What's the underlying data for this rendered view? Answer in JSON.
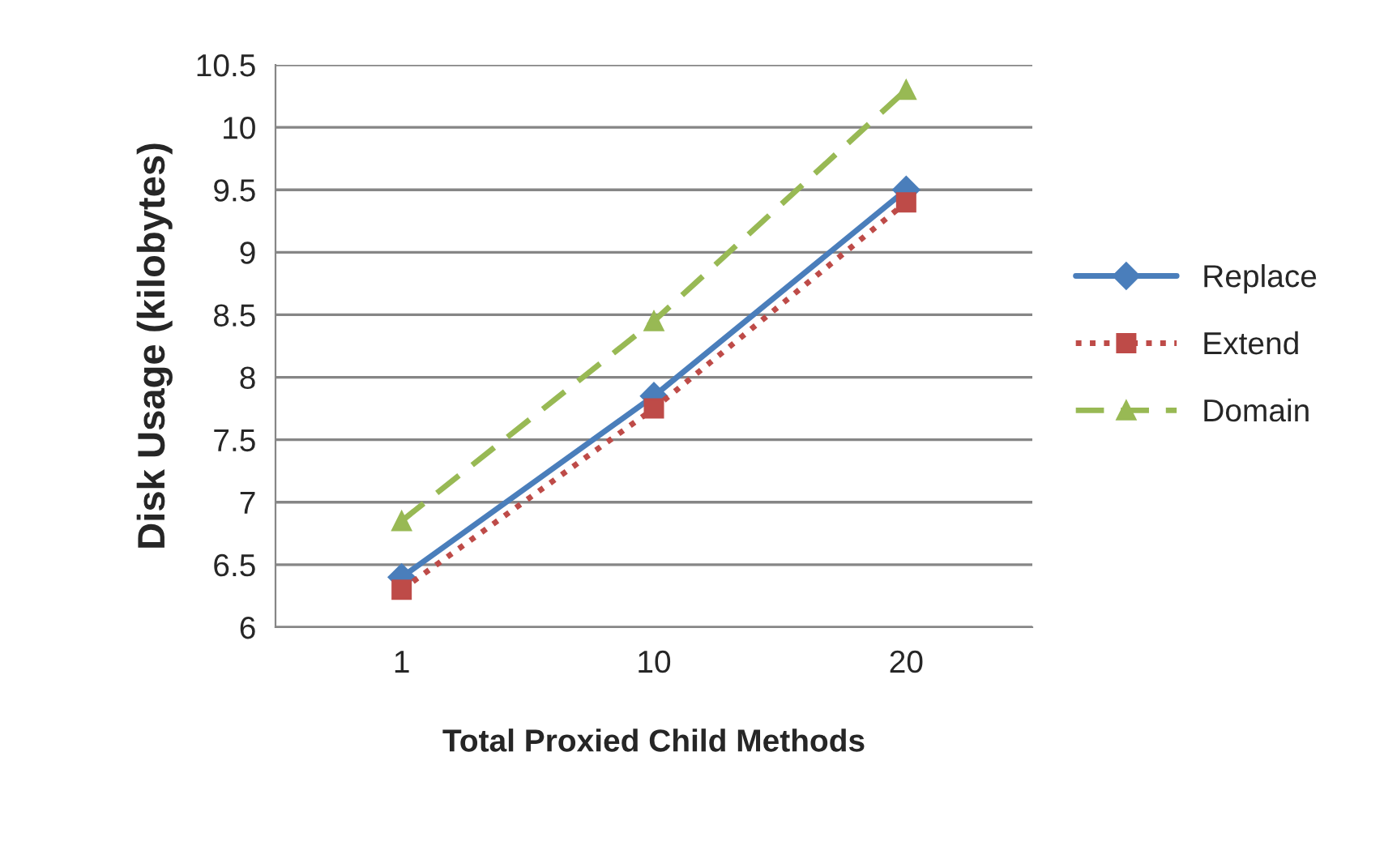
{
  "chart_data": {
    "type": "line",
    "xlabel": "Total Proxied Child Methods",
    "ylabel": "Disk Usage (kilobytes)",
    "categories": [
      "1",
      "10",
      "20"
    ],
    "series": [
      {
        "name": "Replace",
        "color": "#4a7ebb",
        "values": [
          6.4,
          7.85,
          9.5
        ],
        "marker": "diamond",
        "line_style": "solid"
      },
      {
        "name": "Extend",
        "color": "#be4b48",
        "values": [
          6.3,
          7.75,
          9.4
        ],
        "marker": "square",
        "line_style": "dotted"
      },
      {
        "name": "Domain",
        "color": "#98b954",
        "values": [
          6.85,
          8.45,
          10.3
        ],
        "marker": "triangle",
        "line_style": "dashed"
      }
    ],
    "ylim": [
      6,
      10.5
    ],
    "yticks": [
      6,
      6.5,
      7,
      7.5,
      8,
      8.5,
      9,
      9.5,
      10,
      10.5
    ],
    "grid": "y",
    "legend": "right"
  }
}
